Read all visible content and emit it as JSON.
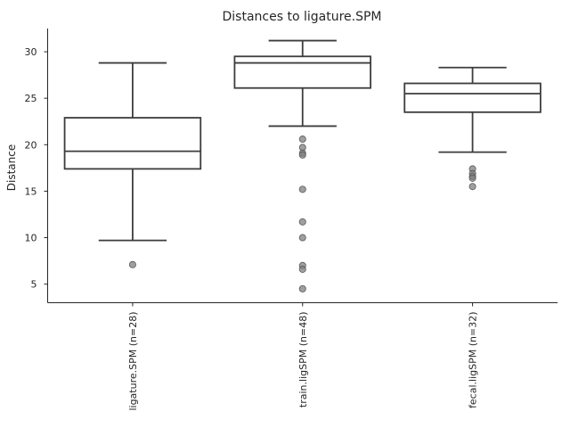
{
  "chart_data": {
    "type": "box",
    "title": "Distances to ligature.SPM",
    "xlabel": "",
    "ylabel": "Distance",
    "ylim": [
      3.0,
      32.5
    ],
    "yticks": [
      5,
      10,
      15,
      20,
      25,
      30
    ],
    "grid": false,
    "categories": [
      "ligature.SPM (n=28)",
      "train.ligSPM (n=48)",
      "fecal.ligSPM (n=32)"
    ],
    "boxes": [
      {
        "whisker_low": 9.7,
        "q1": 17.4,
        "median": 19.3,
        "q3": 22.9,
        "whisker_high": 28.8,
        "outliers": [
          7.1
        ]
      },
      {
        "whisker_low": 22.0,
        "q1": 26.1,
        "median": 28.8,
        "q3": 29.5,
        "whisker_high": 31.2,
        "outliers": [
          20.6,
          19.7,
          19.1,
          18.9,
          15.2,
          11.7,
          10.0,
          7.0,
          6.6,
          4.5
        ]
      },
      {
        "whisker_low": 19.2,
        "q1": 23.5,
        "median": 25.5,
        "q3": 26.6,
        "whisker_high": 28.3,
        "outliers": [
          17.4,
          16.9,
          16.6,
          16.4,
          15.5
        ]
      }
    ],
    "colors": {
      "box_edge": "#3d3d3d",
      "box_fill": "#ffffff",
      "flier": "#7f7f7f"
    }
  }
}
